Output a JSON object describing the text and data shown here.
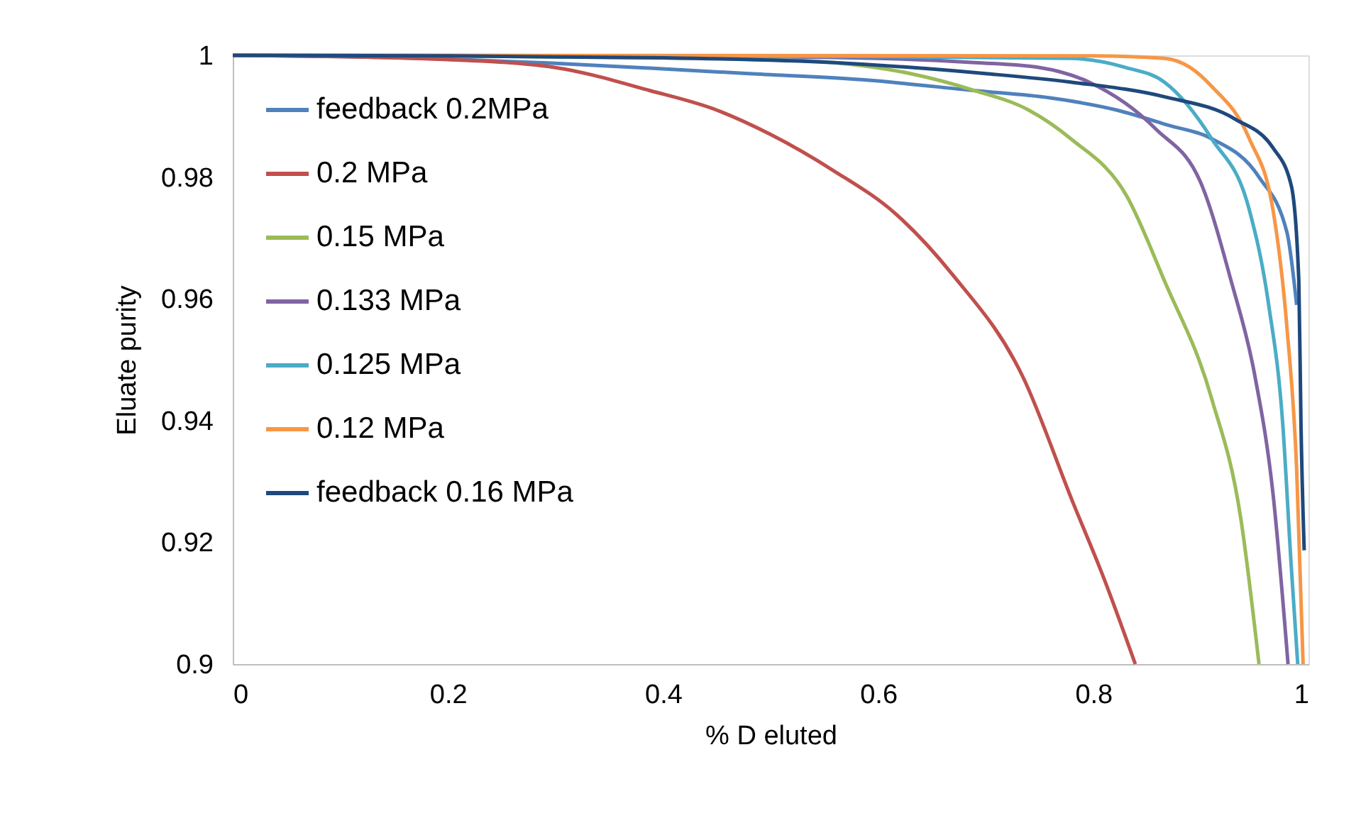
{
  "chart_data": {
    "type": "line",
    "xlabel": "% D eluted",
    "ylabel": "Eluate purity",
    "xlim": [
      0,
      1
    ],
    "xticks": [
      0,
      0.2,
      0.4,
      0.6,
      0.8,
      1
    ],
    "ylim": [
      0.9,
      1
    ],
    "yticks": [
      0.9,
      0.92,
      0.94,
      0.96,
      0.98,
      1
    ],
    "grid": false,
    "legend": "top left",
    "marker": "none",
    "line_style": "solid",
    "series": [
      {
        "name": "feedback 0.2MPa",
        "color": "#4f81bd",
        "x": [
          0,
          0.1,
          0.2,
          0.3,
          0.388,
          0.48,
          0.585,
          0.69,
          0.76,
          0.822,
          0.87,
          0.91,
          0.954,
          0.98,
          0.989
        ],
        "values": [
          1,
          0.9998,
          0.9994,
          0.9987,
          0.9979,
          0.997,
          0.996,
          0.9942,
          0.993,
          0.991,
          0.9885,
          0.9863,
          0.98,
          0.9709,
          0.959
        ]
      },
      {
        "name": "0.2 MPa",
        "color": "#c0504d",
        "x": [
          0,
          0.1,
          0.2,
          0.256,
          0.3,
          0.388,
          0.45,
          0.5,
          0.559,
          0.616,
          0.669,
          0.735,
          0.78,
          0.81,
          0.839
        ],
        "values": [
          1,
          0.9998,
          0.9993,
          0.9988,
          0.998,
          0.9942,
          0.991,
          0.987,
          0.981,
          0.974,
          0.964,
          0.947,
          0.927,
          0.914,
          0.9
        ]
      },
      {
        "name": "0.15 MPa",
        "color": "#9bbb59",
        "x": [
          0,
          0.2,
          0.4,
          0.5,
          0.559,
          0.63,
          0.69,
          0.74,
          0.779,
          0.831,
          0.866,
          0.91,
          0.937,
          0.954
        ],
        "values": [
          1,
          0.9999,
          0.9996,
          0.9993,
          0.9988,
          0.997,
          0.9942,
          0.991,
          0.9863,
          0.9769,
          0.963,
          0.9436,
          0.924,
          0.9
        ]
      },
      {
        "name": "0.133 MPa",
        "color": "#8064a2",
        "x": [
          0,
          0.4,
          0.6,
          0.69,
          0.75,
          0.796,
          0.858,
          0.901,
          0.928,
          0.95,
          0.967,
          0.981
        ],
        "values": [
          1,
          0.9999,
          0.9995,
          0.9988,
          0.998,
          0.9956,
          0.9879,
          0.9786,
          0.963,
          0.9475,
          0.928,
          0.9
        ]
      },
      {
        "name": "0.125 MPa",
        "color": "#4bacc6",
        "x": [
          0,
          0.6,
          0.779,
          0.83,
          0.866,
          0.91,
          0.945,
          0.963,
          0.976,
          0.984,
          0.99
        ],
        "values": [
          1,
          0.9998,
          0.9995,
          0.998,
          0.9956,
          0.9863,
          0.9746,
          0.959,
          0.9396,
          0.916,
          0.9
        ]
      },
      {
        "name": "0.12 MPa",
        "color": "#f79646",
        "x": [
          0,
          0.8,
          0.866,
          0.89,
          0.91,
          0.945,
          0.967,
          0.98,
          0.989,
          0.995
        ],
        "values": [
          1,
          0.9999,
          0.9995,
          0.998,
          0.9949,
          0.9863,
          0.9746,
          0.9552,
          0.932,
          0.9
        ]
      },
      {
        "name": "feedback 0.16 MPa",
        "color": "#1f497d",
        "x": [
          0,
          0.2,
          0.4,
          0.559,
          0.7,
          0.779,
          0.866,
          0.932,
          0.967,
          0.984,
          0.991,
          0.993,
          0.996
        ],
        "values": [
          1,
          0.9999,
          0.9996,
          0.9988,
          0.997,
          0.9956,
          0.9932,
          0.9895,
          0.9848,
          0.9786,
          0.963,
          0.9396,
          0.9187
        ]
      }
    ]
  }
}
